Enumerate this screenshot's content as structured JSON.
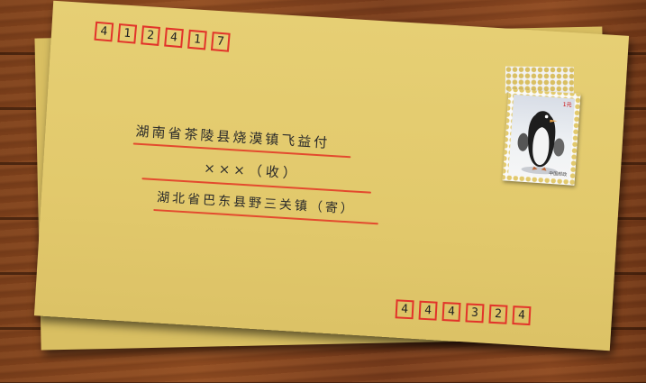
{
  "envelope": {
    "sender_postcode": [
      "4",
      "1",
      "2",
      "4",
      "1",
      "7"
    ],
    "recipient_address_line": "湖南省茶陵县烧漠镇飞益付",
    "recipient_name_line": "×××（收）",
    "sender_address_line": "湖北省巴东县野三关镇（寄）",
    "recipient_postcode": [
      "4",
      "4",
      "4",
      "3",
      "2",
      "4"
    ],
    "stamp": {
      "subject": "penguin",
      "value": "1元",
      "country": "中国邮政"
    }
  },
  "colors": {
    "envelope": "#e2c96c",
    "postcode_box": "#e2332a",
    "underline": "#e34a2e",
    "desk": "#7a3e1a"
  }
}
